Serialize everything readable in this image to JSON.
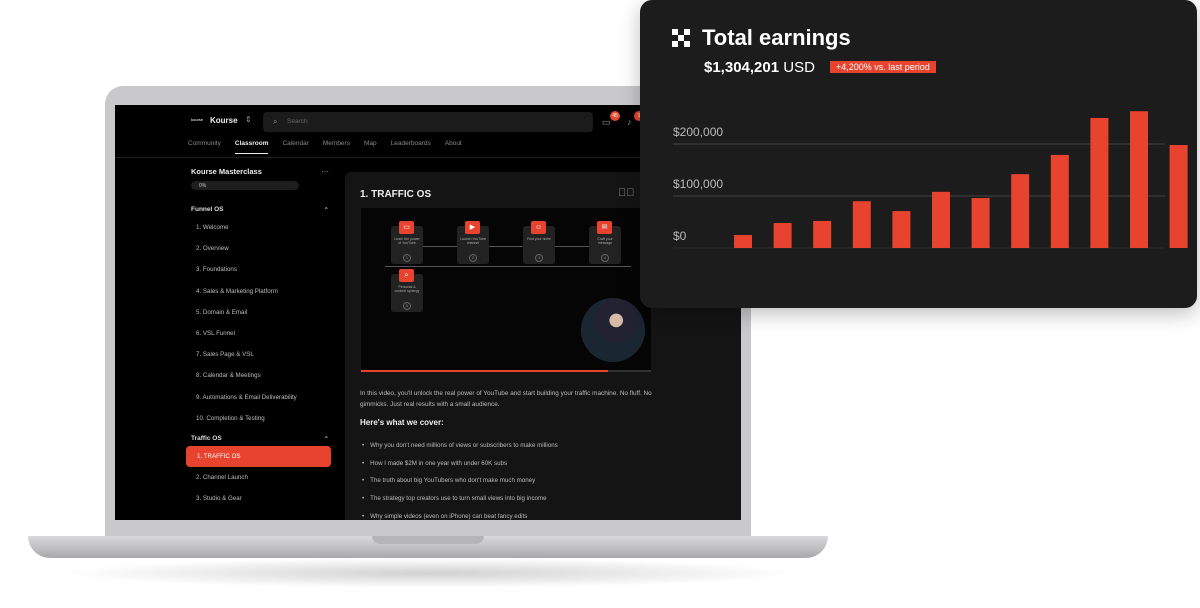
{
  "app": {
    "logo": "kourse",
    "brand": "Kourse",
    "search_placeholder": "Search",
    "messages_badge": "45",
    "notifications_badge": "1"
  },
  "nav": [
    "Community",
    "Classroom",
    "Calendar",
    "Members",
    "Map",
    "Leaderboards",
    "About"
  ],
  "nav_active": "Classroom",
  "sidebar": {
    "course_title": "Kourse Masterclass",
    "progress": "0%",
    "sections": [
      {
        "title": "Funnel OS",
        "items": [
          "1. Welcome",
          "2. Overview",
          "3. Foundations",
          "4. Sales & Marketing Platform",
          "5. Domain & Email",
          "6. VSL Funnel",
          "7. Sales Page & VSL",
          "8. Calendar & Meetings",
          "9. Automations & Email Deliverability",
          "10. Completion & Testing"
        ]
      },
      {
        "title": "Traffic OS",
        "items": [
          "1. TRAFFIC OS",
          "2. Channel Launch",
          "3. Studio & Gear"
        ],
        "active": "1. TRAFFIC OS"
      }
    ]
  },
  "lesson": {
    "title": "1. TRAFFIC OS",
    "video_progress": 0.85,
    "steps": [
      {
        "label": "Learn the power of YouTube",
        "num": "1",
        "icon": "video-icon"
      },
      {
        "label": "Launch YouTube channel",
        "num": "2",
        "icon": "play-icon"
      },
      {
        "label": "Find your niche",
        "num": "3",
        "icon": "users-icon"
      },
      {
        "label": "Craft your message",
        "num": "4",
        "icon": "mail-icon"
      },
      {
        "label": "Personal & content synergy",
        "num": "5",
        "icon": "search-icon"
      }
    ],
    "description": "In this video, you'll unlock the real power of YouTube and start building your traffic machine. No fluff. No gimmicks. Just real results with a small audience.",
    "cover_heading": "Here's what we cover:",
    "bullets": [
      "Why you don't need millions of views or subscribers to make millions",
      "How I made $2M in one year with under 60K subs",
      "The truth about big YouTubers who don't make much money",
      "The strategy top creators use to turn small views into big income",
      "Why simple videos (even on iPhone) can beat fancy edits"
    ]
  },
  "earnings": {
    "title": "Total earnings",
    "amount": "$1,304,201",
    "currency": "USD",
    "change": "+4,200% vs. last period",
    "accent": "#e8432e"
  },
  "chart_data": {
    "type": "bar",
    "yticks": [
      "$0",
      "$100,000",
      "$200,000"
    ],
    "ylim": [
      0,
      280000
    ],
    "grid": true,
    "values": [
      25000,
      48000,
      52000,
      90000,
      71000,
      108000,
      96000,
      142000,
      179000,
      250000,
      263000,
      198000
    ]
  }
}
